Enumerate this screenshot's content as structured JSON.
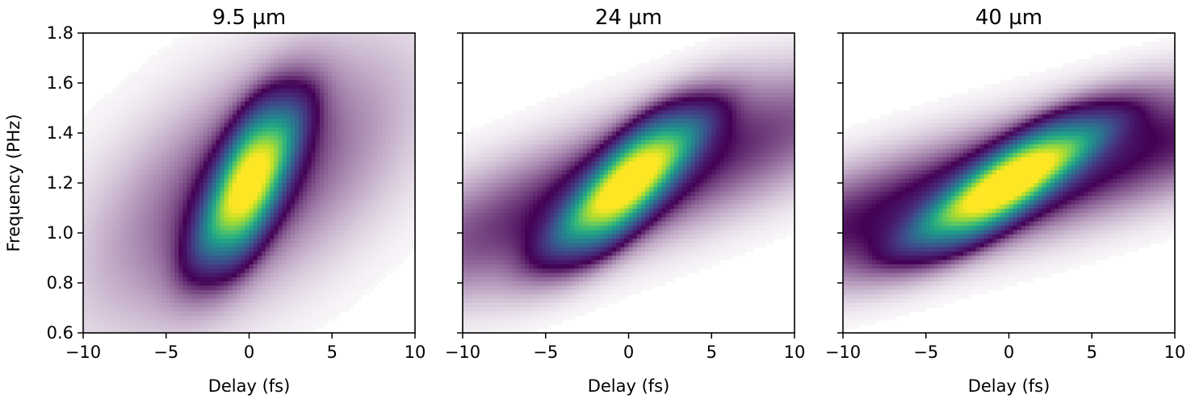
{
  "chart_data": [
    {
      "type": "heatmap",
      "title": "9.5 µm",
      "xlabel": "Delay (fs)",
      "ylabel": "Frequency (PHz)",
      "xlim": [
        -10,
        10
      ],
      "ylim": [
        0.6,
        1.8
      ],
      "xticks": [
        -10,
        -5,
        0,
        5,
        10
      ],
      "xtick_labels": [
        "−10",
        "−5",
        "0",
        "5",
        "10"
      ],
      "yticks": [
        0.6,
        0.8,
        1.0,
        1.2,
        1.4,
        1.6,
        1.8
      ],
      "ytick_labels": [
        "0.6",
        "0.8",
        "1.0",
        "1.2",
        "1.4",
        "1.6",
        "1.8"
      ],
      "show_ytick_labels": true,
      "colormap": "viridis",
      "grid": false,
      "spot": {
        "center_delay": 0.0,
        "center_freq": 1.2,
        "half_width_fs": 2.0,
        "half_height_phz": 0.3,
        "slope_fs_per_phz": 6.0,
        "tail_slope_fs_per_phz": 10,
        "tail_strength": 0.35,
        "peak": 1.0
      }
    },
    {
      "type": "heatmap",
      "title": "24 µm",
      "xlabel": "Delay (fs)",
      "ylabel": "",
      "xlim": [
        -10,
        10
      ],
      "ylim": [
        0.6,
        1.8
      ],
      "xticks": [
        -10,
        -5,
        0,
        5,
        10
      ],
      "xtick_labels": [
        "−10",
        "−5",
        "0",
        "5",
        "10"
      ],
      "yticks": [
        0.6,
        0.8,
        1.0,
        1.2,
        1.4,
        1.6,
        1.8
      ],
      "ytick_labels": [
        "0.6",
        "0.8",
        "1.0",
        "1.2",
        "1.4",
        "1.6",
        "1.8"
      ],
      "show_ytick_labels": false,
      "colormap": "viridis",
      "grid": false,
      "spot": {
        "center_delay": 0.0,
        "center_freq": 1.2,
        "half_width_fs": 2.4,
        "half_height_phz": 0.26,
        "slope_fs_per_phz": 12.0,
        "tail_slope_fs_per_phz": 30,
        "tail_strength": 0.45,
        "peak": 1.0
      }
    },
    {
      "type": "heatmap",
      "title": "40 µm",
      "xlabel": "Delay (fs)",
      "ylabel": "",
      "xlim": [
        -10,
        10
      ],
      "ylim": [
        0.6,
        1.8
      ],
      "xticks": [
        -10,
        -5,
        0,
        5,
        10
      ],
      "xtick_labels": [
        "−10",
        "−5",
        "0",
        "5",
        "10"
      ],
      "yticks": [
        0.6,
        0.8,
        1.0,
        1.2,
        1.4,
        1.6,
        1.8
      ],
      "ytick_labels": [
        "0.6",
        "0.8",
        "1.0",
        "1.2",
        "1.4",
        "1.6",
        "1.8"
      ],
      "show_ytick_labels": false,
      "colormap": "viridis",
      "grid": false,
      "spot": {
        "center_delay": 0.0,
        "center_freq": 1.2,
        "half_width_fs": 2.8,
        "half_height_phz": 0.24,
        "slope_fs_per_phz": 18.0,
        "tail_slope_fs_per_phz": 40,
        "tail_strength": 0.55,
        "peak": 1.0
      }
    }
  ]
}
